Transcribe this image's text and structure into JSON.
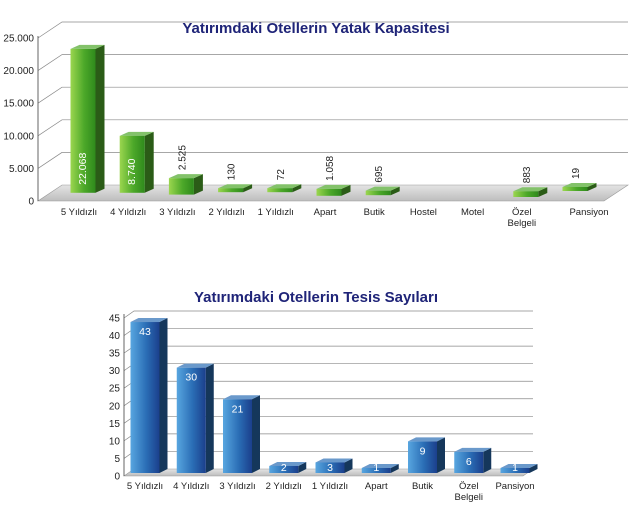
{
  "chart_data": [
    {
      "type": "bar",
      "title": "Yatırımdaki Otellerin Yatak Kapasitesi",
      "categories": [
        "5 Yıldızlı",
        "4 Yıldızlı",
        "3 Yıldızlı",
        "2 Yıldızlı",
        "1 Yıldızlı",
        "Apart",
        "Butik",
        "Hostel",
        "Motel",
        "Özel Belgeli",
        "Pansiyon"
      ],
      "values": [
        22068,
        8740,
        2525,
        130,
        72,
        1058,
        695,
        null,
        null,
        883,
        19
      ],
      "data_labels": [
        "22.068",
        "8.740",
        "2.525",
        "130",
        "72",
        "1.058",
        "695",
        "",
        "",
        "883",
        "19"
      ],
      "yticks": [
        "0",
        "5.000",
        "10.000",
        "15.000",
        "20.000",
        "25.000"
      ],
      "ylim": [
        0,
        25000
      ],
      "xlabel": "",
      "ylabel": "",
      "color": "#4ea82a",
      "grid": true
    },
    {
      "type": "bar",
      "title": "Yatırımdaki Otellerin Tesis Sayıları",
      "categories": [
        "5 Yıldızlı",
        "4 Yıldızlı",
        "3 Yıldızlı",
        "2 Yıldızlı",
        "1 Yıldızlı",
        "Apart",
        "Butik",
        "Özel Belgeli",
        "Pansiyon"
      ],
      "values": [
        43,
        30,
        21,
        2,
        3,
        1,
        9,
        6,
        1
      ],
      "data_labels": [
        "43",
        "30",
        "21",
        "2",
        "3",
        "1",
        "9",
        "6",
        "1"
      ],
      "yticks": [
        "0",
        "5",
        "10",
        "15",
        "20",
        "25",
        "30",
        "35",
        "40",
        "45"
      ],
      "ylim": [
        0,
        45
      ],
      "xlabel": "",
      "ylabel": "",
      "color": "#2a6db5",
      "grid": true
    }
  ]
}
